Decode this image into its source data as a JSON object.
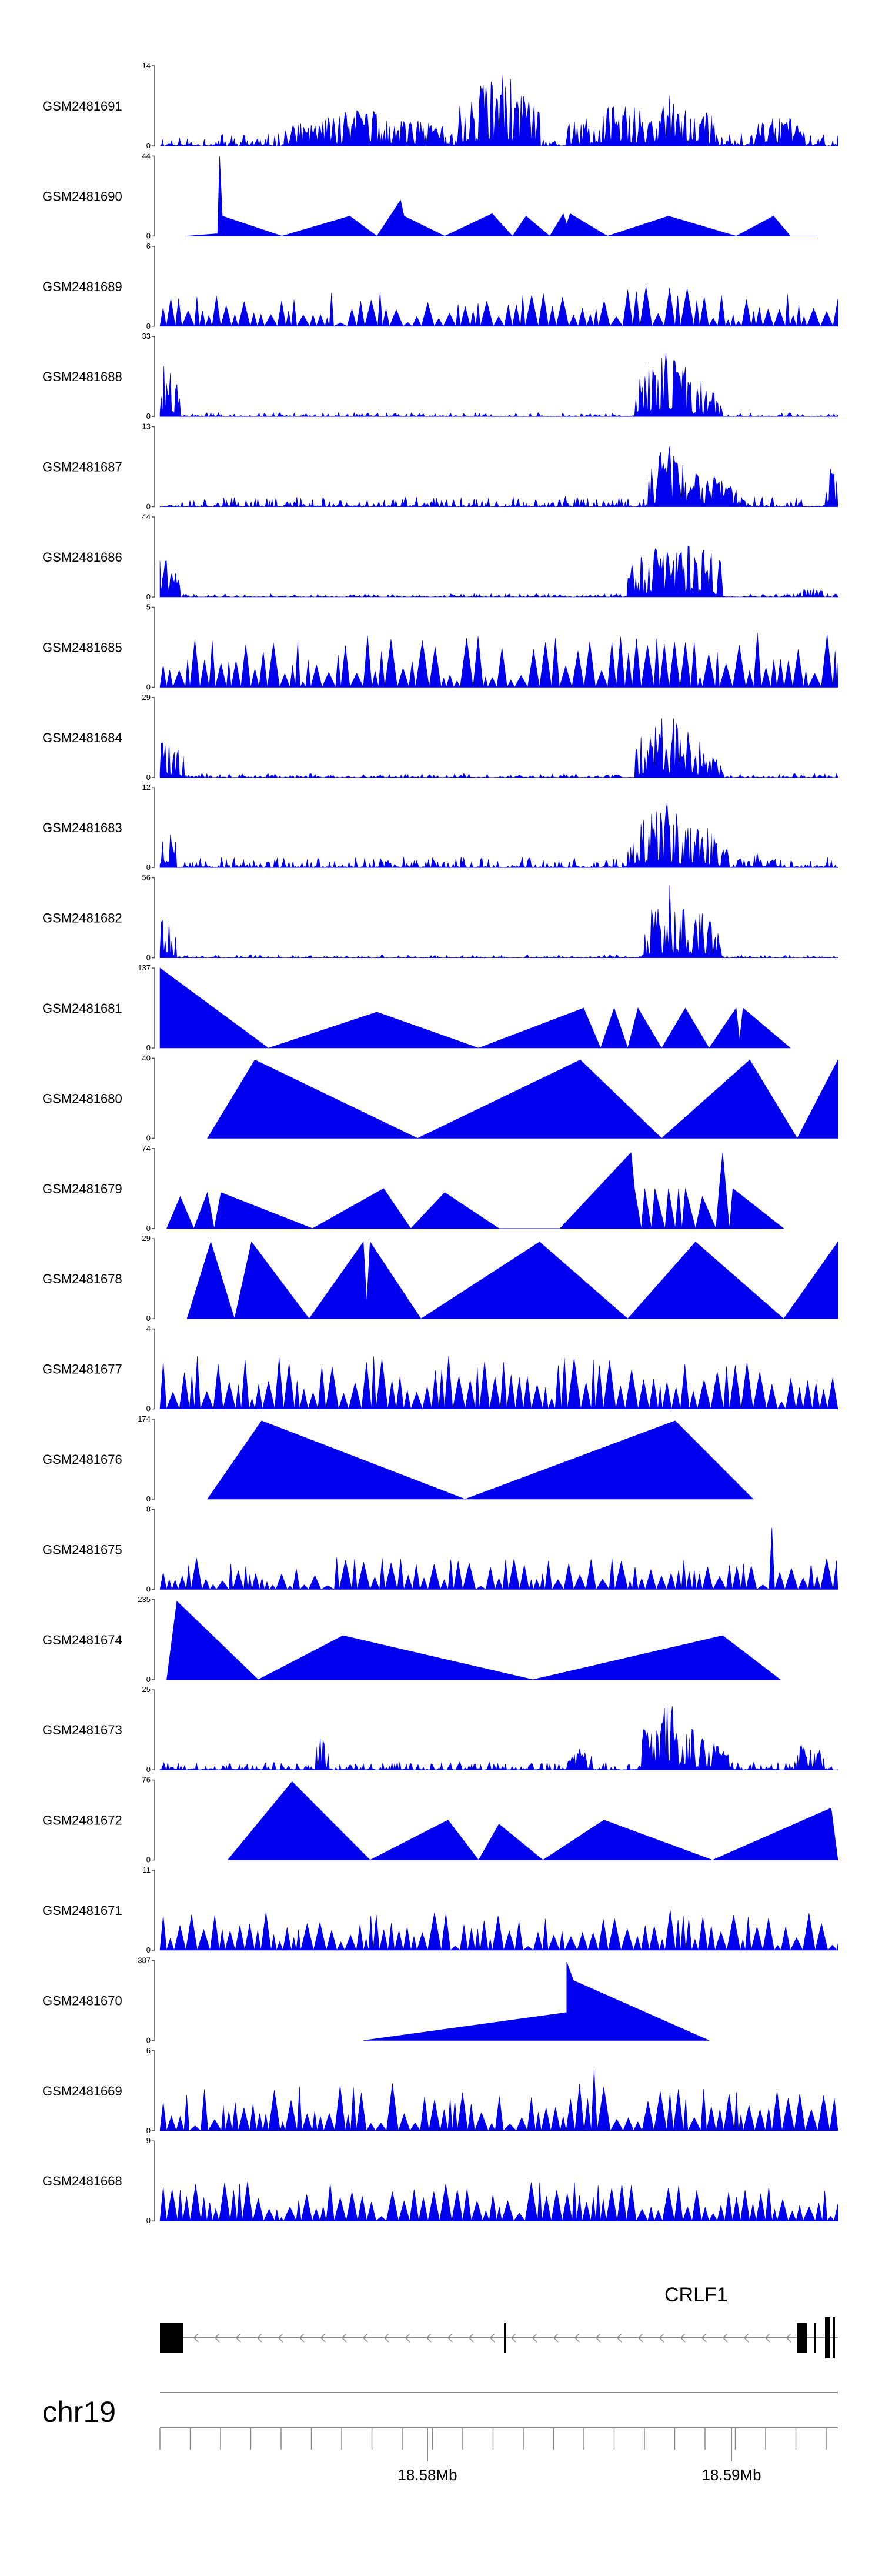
{
  "chart_data": {
    "type": "area",
    "title": "",
    "chromosome": "chr19",
    "gene": "CRLF1",
    "xlim": [
      18.5712,
      18.5935
    ],
    "x_ticks": [
      {
        "label": "18.58Mb",
        "value": 18.58
      },
      {
        "label": "18.59Mb",
        "value": 18.59
      }
    ],
    "colors": {
      "fill": "#0000ee",
      "axis": "#555555",
      "gene": "#000000"
    },
    "tracks": [
      {
        "name": "GSM2481691",
        "ymax": "14",
        "ymin": "0",
        "shape": "dense",
        "seed": 11,
        "base": 0.16,
        "peaks": [
          [
            0.5,
            0.99,
            0.06
          ],
          [
            0.3,
            0.48,
            0.12
          ],
          [
            0.68,
            0.55,
            0.08
          ],
          [
            0.76,
            0.7,
            0.06
          ],
          [
            0.91,
            0.45,
            0.04
          ]
        ]
      },
      {
        "name": "GSM2481690",
        "ymax": "44",
        "ymin": "0",
        "shape": "sparse",
        "pts": [
          [
            0.04,
            0
          ],
          [
            0.085,
            0.03
          ],
          [
            0.088,
            1.0
          ],
          [
            0.092,
            0.25
          ],
          [
            0.18,
            0
          ],
          [
            0.28,
            0.25
          ],
          [
            0.32,
            0
          ],
          [
            0.355,
            0.45
          ],
          [
            0.36,
            0.25
          ],
          [
            0.42,
            0
          ],
          [
            0.49,
            0.28
          ],
          [
            0.52,
            0
          ],
          [
            0.54,
            0.25
          ],
          [
            0.575,
            0
          ],
          [
            0.595,
            0.28
          ],
          [
            0.6,
            0.15
          ],
          [
            0.605,
            0.28
          ],
          [
            0.66,
            0
          ],
          [
            0.75,
            0.25
          ],
          [
            0.85,
            0
          ],
          [
            0.905,
            0.25
          ],
          [
            0.93,
            0
          ],
          [
            0.97,
            0
          ]
        ]
      },
      {
        "name": "GSM2481689",
        "ymax": "6",
        "ymin": "0",
        "shape": "spiky",
        "seed": 23,
        "base": 0.35,
        "peaks": [
          [
            0.72,
            0.95,
            0.05
          ],
          [
            0.79,
            0.6,
            0.05
          ],
          [
            0.98,
            0.8,
            0.01
          ]
        ]
      },
      {
        "name": "GSM2481688",
        "ymax": "33",
        "ymin": "0",
        "shape": "dense",
        "seed": 31,
        "base": 0.05,
        "peaks": [
          [
            0.005,
            0.7,
            0.025
          ],
          [
            0.75,
            0.9,
            0.05
          ],
          [
            0.78,
            0.6,
            0.04
          ],
          [
            0.8,
            0.3,
            0.03
          ]
        ]
      },
      {
        "name": "GSM2481687",
        "ymax": "13",
        "ymin": "0",
        "shape": "dense",
        "seed": 37,
        "base": 0.13,
        "peaks": [
          [
            0.75,
            0.85,
            0.03
          ],
          [
            0.8,
            0.5,
            0.05
          ],
          [
            0.99,
            0.65,
            0.01
          ]
        ]
      },
      {
        "name": "GSM2481686",
        "ymax": "44",
        "ymin": "0",
        "shape": "dense",
        "seed": 41,
        "base": 0.04,
        "peaks": [
          [
            0.005,
            0.5,
            0.025
          ],
          [
            0.74,
            0.75,
            0.05
          ],
          [
            0.79,
            0.85,
            0.04
          ],
          [
            0.96,
            0.15,
            0.02
          ]
        ]
      },
      {
        "name": "GSM2481685",
        "ymax": "5",
        "ymin": "0",
        "shape": "spiky",
        "seed": 43,
        "base": 0.55,
        "peaks": [
          [
            0.74,
            0.8,
            0.04
          ],
          [
            0.77,
            0.9,
            0.03
          ]
        ]
      },
      {
        "name": "GSM2481684",
        "ymax": "29",
        "ymin": "0",
        "shape": "dense",
        "seed": 47,
        "base": 0.05,
        "peaks": [
          [
            0.005,
            0.55,
            0.03
          ],
          [
            0.75,
            0.85,
            0.05
          ],
          [
            0.79,
            0.4,
            0.04
          ]
        ]
      },
      {
        "name": "GSM2481683",
        "ymax": "12",
        "ymin": "0",
        "shape": "dense",
        "seed": 53,
        "base": 0.14,
        "peaks": [
          [
            0.005,
            0.7,
            0.02
          ],
          [
            0.74,
            0.9,
            0.05
          ],
          [
            0.8,
            0.55,
            0.04
          ],
          [
            0.88,
            0.2,
            0.03
          ]
        ]
      },
      {
        "name": "GSM2481682",
        "ymax": "56",
        "ymin": "0",
        "shape": "dense",
        "seed": 59,
        "base": 0.04,
        "peaks": [
          [
            0.005,
            0.6,
            0.02
          ],
          [
            0.75,
            0.95,
            0.04
          ],
          [
            0.8,
            0.6,
            0.03
          ]
        ]
      },
      {
        "name": "GSM2481681",
        "ymax": "137",
        "ymin": "0",
        "shape": "sparse",
        "pts": [
          [
            0,
            0
          ],
          [
            0.0,
            1.0
          ],
          [
            0.16,
            0
          ],
          [
            0.32,
            0.45
          ],
          [
            0.47,
            0
          ],
          [
            0.625,
            0.5
          ],
          [
            0.65,
            0
          ],
          [
            0.67,
            0.5
          ],
          [
            0.69,
            0
          ],
          [
            0.705,
            0.5
          ],
          [
            0.74,
            0
          ],
          [
            0.775,
            0.5
          ],
          [
            0.81,
            0
          ],
          [
            0.85,
            0.5
          ],
          [
            0.855,
            0.1
          ],
          [
            0.86,
            0.5
          ],
          [
            0.93,
            0
          ]
        ]
      },
      {
        "name": "GSM2481680",
        "ymax": "40",
        "ymin": "0",
        "shape": "sparse",
        "pts": [
          [
            0.07,
            0
          ],
          [
            0.14,
            0.98
          ],
          [
            0.38,
            0
          ],
          [
            0.62,
            0.98
          ],
          [
            0.74,
            0
          ],
          [
            0.87,
            0.98
          ],
          [
            0.94,
            0
          ],
          [
            1.0,
            0.98
          ],
          [
            1.0,
            0
          ]
        ]
      },
      {
        "name": "GSM2481679",
        "ymax": "74",
        "ymin": "0",
        "shape": "sparse",
        "pts": [
          [
            0.01,
            0
          ],
          [
            0.03,
            0.4
          ],
          [
            0.05,
            0
          ],
          [
            0.07,
            0.45
          ],
          [
            0.08,
            0
          ],
          [
            0.09,
            0.45
          ],
          [
            0.225,
            0
          ],
          [
            0.33,
            0.5
          ],
          [
            0.37,
            0
          ],
          [
            0.42,
            0.45
          ],
          [
            0.5,
            0
          ],
          [
            0.59,
            0
          ],
          [
            0.695,
            0.95
          ],
          [
            0.7,
            0.5
          ],
          [
            0.71,
            0
          ],
          [
            0.715,
            0.5
          ],
          [
            0.725,
            0
          ],
          [
            0.73,
            0.5
          ],
          [
            0.745,
            0
          ],
          [
            0.75,
            0.5
          ],
          [
            0.76,
            0
          ],
          [
            0.765,
            0.5
          ],
          [
            0.77,
            0
          ],
          [
            0.775,
            0.5
          ],
          [
            0.79,
            0
          ],
          [
            0.8,
            0.4
          ],
          [
            0.82,
            0
          ],
          [
            0.825,
            0.5
          ],
          [
            0.83,
            0.95
          ],
          [
            0.84,
            0
          ],
          [
            0.845,
            0.5
          ],
          [
            0.92,
            0
          ]
        ]
      },
      {
        "name": "GSM2481678",
        "ymax": "29",
        "ymin": "0",
        "shape": "sparse",
        "pts": [
          [
            0.04,
            0
          ],
          [
            0.075,
            0.96
          ],
          [
            0.11,
            0
          ],
          [
            0.135,
            0.96
          ],
          [
            0.22,
            0
          ],
          [
            0.3,
            0.96
          ],
          [
            0.305,
            0.2
          ],
          [
            0.31,
            0.96
          ],
          [
            0.385,
            0
          ],
          [
            0.56,
            0.96
          ],
          [
            0.69,
            0
          ],
          [
            0.79,
            0.96
          ],
          [
            0.92,
            0
          ],
          [
            1.0,
            0.96
          ],
          [
            1.0,
            0
          ]
        ]
      },
      {
        "name": "GSM2481677",
        "ymax": "4",
        "ymin": "0",
        "shape": "spiky",
        "seed": 61,
        "base": 0.55,
        "peaks": []
      },
      {
        "name": "GSM2481676",
        "ymax": "174",
        "ymin": "0",
        "shape": "sparse",
        "pts": [
          [
            0.07,
            0
          ],
          [
            0.15,
            0.98
          ],
          [
            0.45,
            0
          ],
          [
            0.76,
            0.98
          ],
          [
            0.875,
            0
          ]
        ]
      },
      {
        "name": "GSM2481675",
        "ymax": "8",
        "ymin": "0",
        "shape": "spiky",
        "seed": 67,
        "base": 0.32,
        "peaks": [
          [
            0.28,
            0.95,
            0.008
          ],
          [
            0.9,
            0.95,
            0.008
          ]
        ]
      },
      {
        "name": "GSM2481674",
        "ymax": "235",
        "ymin": "0",
        "shape": "sparse",
        "pts": [
          [
            0.01,
            0
          ],
          [
            0.025,
            0.98
          ],
          [
            0.145,
            0
          ],
          [
            0.27,
            0.55
          ],
          [
            0.55,
            0
          ],
          [
            0.83,
            0.55
          ],
          [
            0.915,
            0
          ]
        ]
      },
      {
        "name": "GSM2481673",
        "ymax": "25",
        "ymin": "0",
        "shape": "dense",
        "seed": 71,
        "base": 0.1,
        "peaks": [
          [
            0.24,
            0.55,
            0.01
          ],
          [
            0.62,
            0.3,
            0.02
          ],
          [
            0.75,
            0.95,
            0.04
          ],
          [
            0.8,
            0.45,
            0.04
          ],
          [
            0.96,
            0.5,
            0.02
          ]
        ]
      },
      {
        "name": "GSM2481672",
        "ymax": "76",
        "ymin": "0",
        "shape": "sparse",
        "pts": [
          [
            0.1,
            0
          ],
          [
            0.195,
            0.98
          ],
          [
            0.31,
            0
          ],
          [
            0.425,
            0.5
          ],
          [
            0.47,
            0
          ],
          [
            0.5,
            0.45
          ],
          [
            0.565,
            0
          ],
          [
            0.655,
            0.5
          ],
          [
            0.815,
            0
          ],
          [
            0.99,
            0.65
          ],
          [
            1.0,
            0
          ]
        ]
      },
      {
        "name": "GSM2481671",
        "ymax": "11",
        "ymin": "0",
        "shape": "spiky",
        "seed": 73,
        "base": 0.38,
        "peaks": [
          [
            0.75,
            0.98,
            0.008
          ]
        ]
      },
      {
        "name": "GSM2481670",
        "ymax": "387",
        "ymin": "0",
        "shape": "sparse",
        "pts": [
          [
            0.3,
            0
          ],
          [
            0.6,
            0.35
          ],
          [
            0.6,
            0.98
          ],
          [
            0.61,
            0.75
          ],
          [
            0.81,
            0
          ]
        ]
      },
      {
        "name": "GSM2481669",
        "ymax": "6",
        "ymin": "0",
        "shape": "spiky",
        "seed": 79,
        "base": 0.48,
        "peaks": [
          [
            0.64,
            0.98,
            0.01
          ],
          [
            0.78,
            0.75,
            0.05
          ]
        ]
      },
      {
        "name": "GSM2481668",
        "ymax": "9",
        "ymin": "0",
        "shape": "spiky",
        "seed": 83,
        "base": 0.4,
        "peaks": [
          [
            0.17,
            0.98,
            0.006
          ],
          [
            0.76,
            0.95,
            0.006
          ]
        ]
      }
    ]
  }
}
